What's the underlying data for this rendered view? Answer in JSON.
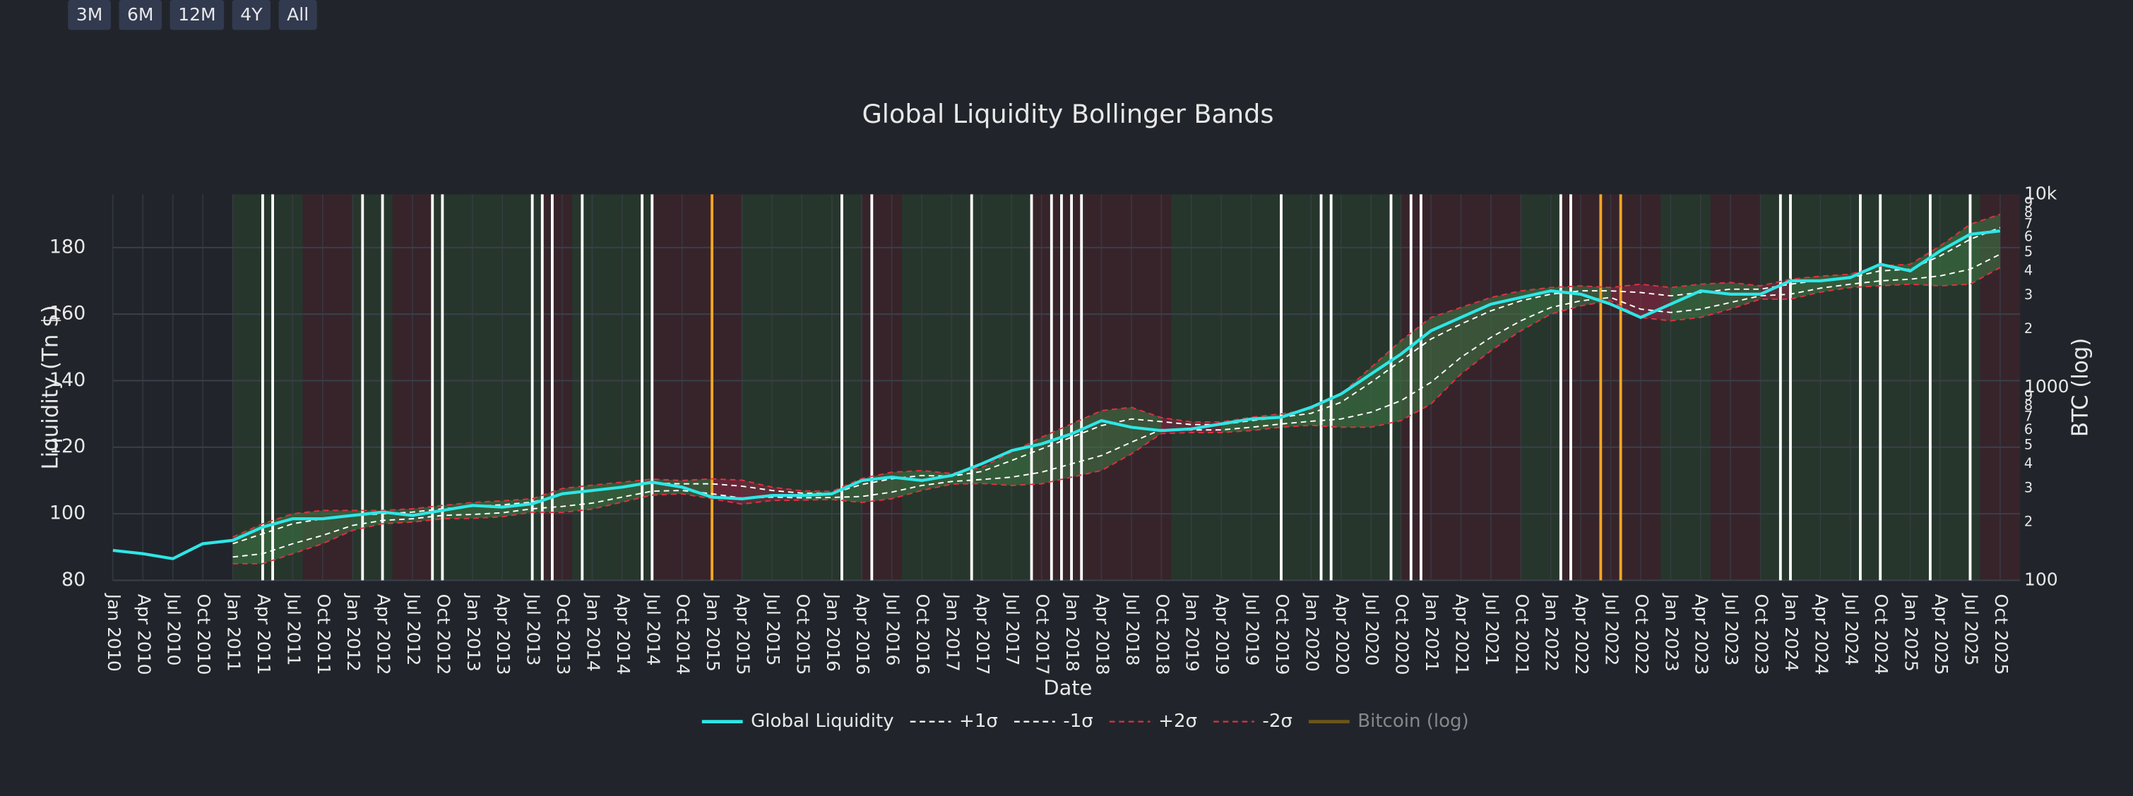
{
  "buttons": [
    "3M",
    "6M",
    "12M",
    "4Y",
    "All"
  ],
  "chart_data": {
    "type": "line",
    "title": "Global Liquidity Bollinger Bands",
    "xlabel": "Date",
    "ylabel": "Liquidity (Tn $)",
    "y2label": "BTC (log)",
    "x": [
      "2010-01",
      "2010-04",
      "2010-07",
      "2010-10",
      "2011-01",
      "2011-04",
      "2011-07",
      "2011-10",
      "2012-01",
      "2012-04",
      "2012-07",
      "2012-10",
      "2013-01",
      "2013-04",
      "2013-07",
      "2013-10",
      "2014-01",
      "2014-04",
      "2014-07",
      "2014-10",
      "2015-01",
      "2015-04",
      "2015-07",
      "2015-10",
      "2016-01",
      "2016-04",
      "2016-07",
      "2016-10",
      "2017-01",
      "2017-04",
      "2017-07",
      "2017-10",
      "2018-01",
      "2018-04",
      "2018-07",
      "2018-10",
      "2019-01",
      "2019-04",
      "2019-07",
      "2019-10",
      "2020-01",
      "2020-04",
      "2020-07",
      "2020-10",
      "2021-01",
      "2021-04",
      "2021-07",
      "2021-10",
      "2022-01",
      "2022-04",
      "2022-07",
      "2022-10",
      "2023-01",
      "2023-04",
      "2023-07",
      "2023-10",
      "2024-01",
      "2024-04",
      "2024-07",
      "2024-10",
      "2025-01",
      "2025-04",
      "2025-07",
      "2025-10"
    ],
    "xlim": [
      "2010-01",
      "2025-12"
    ],
    "xticks": [
      {
        "value": "2010-01",
        "label": "Jan 2010"
      },
      {
        "value": "2010-04",
        "label": "Apr 2010"
      },
      {
        "value": "2010-07",
        "label": "Jul 2010"
      },
      {
        "value": "2010-10",
        "label": "Oct 2010"
      },
      {
        "value": "2011-01",
        "label": "Jan 2011"
      },
      {
        "value": "2011-04",
        "label": "Apr 2011"
      },
      {
        "value": "2011-07",
        "label": "Jul 2011"
      },
      {
        "value": "2011-10",
        "label": "Oct 2011"
      },
      {
        "value": "2012-01",
        "label": "Jan 2012"
      },
      {
        "value": "2012-04",
        "label": "Apr 2012"
      },
      {
        "value": "2012-07",
        "label": "Jul 2012"
      },
      {
        "value": "2012-10",
        "label": "Oct 2012"
      },
      {
        "value": "2013-01",
        "label": "Jan 2013"
      },
      {
        "value": "2013-04",
        "label": "Apr 2013"
      },
      {
        "value": "2013-07",
        "label": "Jul 2013"
      },
      {
        "value": "2013-10",
        "label": "Oct 2013"
      },
      {
        "value": "2014-01",
        "label": "Jan 2014"
      },
      {
        "value": "2014-04",
        "label": "Apr 2014"
      },
      {
        "value": "2014-07",
        "label": "Jul 2014"
      },
      {
        "value": "2014-10",
        "label": "Oct 2014"
      },
      {
        "value": "2015-01",
        "label": "Jan 2015"
      },
      {
        "value": "2015-04",
        "label": "Apr 2015"
      },
      {
        "value": "2015-07",
        "label": "Jul 2015"
      },
      {
        "value": "2015-10",
        "label": "Oct 2015"
      },
      {
        "value": "2016-01",
        "label": "Jan 2016"
      },
      {
        "value": "2016-04",
        "label": "Apr 2016"
      },
      {
        "value": "2016-07",
        "label": "Jul 2016"
      },
      {
        "value": "2016-10",
        "label": "Oct 2016"
      },
      {
        "value": "2017-01",
        "label": "Jan 2017"
      },
      {
        "value": "2017-04",
        "label": "Apr 2017"
      },
      {
        "value": "2017-07",
        "label": "Jul 2017"
      },
      {
        "value": "2017-10",
        "label": "Oct 2017"
      },
      {
        "value": "2018-01",
        "label": "Jan 2018"
      },
      {
        "value": "2018-04",
        "label": "Apr 2018"
      },
      {
        "value": "2018-07",
        "label": "Jul 2018"
      },
      {
        "value": "2018-10",
        "label": "Oct 2018"
      },
      {
        "value": "2019-01",
        "label": "Jan 2019"
      },
      {
        "value": "2019-04",
        "label": "Apr 2019"
      },
      {
        "value": "2019-07",
        "label": "Jul 2019"
      },
      {
        "value": "2019-10",
        "label": "Oct 2019"
      },
      {
        "value": "2020-01",
        "label": "Jan 2020"
      },
      {
        "value": "2020-04",
        "label": "Apr 2020"
      },
      {
        "value": "2020-07",
        "label": "Jul 2020"
      },
      {
        "value": "2020-10",
        "label": "Oct 2020"
      },
      {
        "value": "2021-01",
        "label": "Jan 2021"
      },
      {
        "value": "2021-04",
        "label": "Apr 2021"
      },
      {
        "value": "2021-07",
        "label": "Jul 2021"
      },
      {
        "value": "2021-10",
        "label": "Oct 2021"
      },
      {
        "value": "2022-01",
        "label": "Jan 2022"
      },
      {
        "value": "2022-04",
        "label": "Apr 2022"
      },
      {
        "value": "2022-07",
        "label": "Jul 2022"
      },
      {
        "value": "2022-10",
        "label": "Oct 2022"
      },
      {
        "value": "2023-01",
        "label": "Jan 2023"
      },
      {
        "value": "2023-04",
        "label": "Apr 2023"
      },
      {
        "value": "2023-07",
        "label": "Jul 2023"
      },
      {
        "value": "2023-10",
        "label": "Oct 2023"
      },
      {
        "value": "2024-01",
        "label": "Jan 2024"
      },
      {
        "value": "2024-04",
        "label": "Apr 2024"
      },
      {
        "value": "2024-07",
        "label": "Jul 2024"
      },
      {
        "value": "2024-10",
        "label": "Oct 2024"
      },
      {
        "value": "2025-01",
        "label": "Jan 2025"
      },
      {
        "value": "2025-04",
        "label": "Apr 2025"
      },
      {
        "value": "2025-07",
        "label": "Jul 2025"
      },
      {
        "value": "2025-10",
        "label": "Oct 2025"
      }
    ],
    "ylim": [
      80,
      196
    ],
    "yticks": [
      80,
      100,
      120,
      140,
      160,
      180
    ],
    "y2lim": [
      100,
      10000
    ],
    "y2log": true,
    "y2ticks": [
      100,
      {
        "value": 200,
        "label": "2"
      },
      {
        "value": 300,
        "label": "3"
      },
      {
        "value": 400,
        "label": "4"
      },
      {
        "value": 500,
        "label": "5"
      },
      {
        "value": 600,
        "label": "6"
      },
      {
        "value": 700,
        "label": "7"
      },
      {
        "value": 800,
        "label": "8"
      },
      {
        "value": 900,
        "label": "9"
      },
      1000,
      {
        "value": 2000,
        "label": "2"
      },
      {
        "value": 3000,
        "label": "3"
      },
      {
        "value": 4000,
        "label": "4"
      },
      {
        "value": 5000,
        "label": "5"
      },
      {
        "value": 6000,
        "label": "6"
      },
      {
        "value": 7000,
        "label": "7"
      },
      {
        "value": 8000,
        "label": "8"
      },
      {
        "value": 9000,
        "label": "9"
      },
      {
        "value": 10000,
        "label": "10k"
      }
    ],
    "grid": true,
    "legend": "bottom",
    "band_colors": {
      "above": "#3f7a45",
      "below": "#8a2a45"
    },
    "regimes": [
      {
        "start": "2011-01",
        "end": "2011-08",
        "color": "#283a2d"
      },
      {
        "start": "2011-08",
        "end": "2012-01",
        "color": "#3b252c"
      },
      {
        "start": "2012-01",
        "end": "2012-05",
        "color": "#283a2d"
      },
      {
        "start": "2012-05",
        "end": "2012-09",
        "color": "#3b252c"
      },
      {
        "start": "2012-09",
        "end": "2013-08",
        "color": "#283a2d"
      },
      {
        "start": "2013-08",
        "end": "2013-11",
        "color": "#3b252c"
      },
      {
        "start": "2013-11",
        "end": "2014-07",
        "color": "#283a2d"
      },
      {
        "start": "2014-07",
        "end": "2015-04",
        "color": "#3b252c"
      },
      {
        "start": "2015-04",
        "end": "2016-04",
        "color": "#283a2d"
      },
      {
        "start": "2016-04",
        "end": "2016-08",
        "color": "#3b252c"
      },
      {
        "start": "2016-08",
        "end": "2017-09",
        "color": "#283a2d"
      },
      {
        "start": "2017-09",
        "end": "2018-11",
        "color": "#3b252c"
      },
      {
        "start": "2018-11",
        "end": "2020-10",
        "color": "#283a2d"
      },
      {
        "start": "2020-10",
        "end": "2021-10",
        "color": "#3b252c"
      },
      {
        "start": "2021-10",
        "end": "2022-02",
        "color": "#283a2d"
      },
      {
        "start": "2022-02",
        "end": "2022-12",
        "color": "#3b252c"
      },
      {
        "start": "2022-12",
        "end": "2023-05",
        "color": "#283a2d"
      },
      {
        "start": "2023-05",
        "end": "2023-10",
        "color": "#3b252c"
      },
      {
        "start": "2023-10",
        "end": "2025-08",
        "color": "#283a2d"
      },
      {
        "start": "2025-08",
        "end": "2025-12",
        "color": "#3b252c"
      }
    ],
    "signals": [
      {
        "color": "#ffffff",
        "x": [
          "2011-04",
          "2011-05",
          "2012-02",
          "2012-04",
          "2012-09",
          "2012-10",
          "2013-07",
          "2013-08",
          "2013-09",
          "2013-12",
          "2014-06",
          "2014-07",
          "2016-02",
          "2016-05",
          "2017-03",
          "2017-09",
          "2017-11",
          "2017-12",
          "2018-01",
          "2018-02",
          "2019-10",
          "2020-02",
          "2020-03",
          "2020-09",
          "2020-11",
          "2020-12",
          "2022-02",
          "2022-03",
          "2023-12",
          "2024-01",
          "2024-08",
          "2024-10",
          "2025-03",
          "2025-07"
        ]
      },
      {
        "color": "#f5a623",
        "x": [
          "2015-01",
          "2022-06",
          "2022-08"
        ]
      }
    ],
    "series": [
      {
        "name": "Global Liquidity",
        "color": "#2ee6e6",
        "dash": "solid",
        "width": 2.2,
        "values": [
          89,
          88,
          86.5,
          91,
          92,
          96,
          98.5,
          98.5,
          99.5,
          100.5,
          99.5,
          101,
          102.5,
          102,
          103,
          106,
          107,
          108,
          109.5,
          108,
          105,
          104.5,
          105.5,
          105.5,
          106,
          110,
          111,
          110,
          111.5,
          115,
          119,
          121,
          124,
          128,
          126,
          125,
          125.5,
          127,
          128.5,
          129,
          132,
          136,
          142,
          148,
          155,
          159,
          163,
          165,
          167,
          166,
          163,
          159,
          163,
          167,
          166,
          166,
          170,
          170,
          171,
          175,
          173,
          179,
          184,
          185
        ]
      },
      {
        "name": "+1σ",
        "color": "#ffffff",
        "dash": "dash",
        "width": 1,
        "values": [
          null,
          null,
          null,
          null,
          91,
          94,
          97,
          98.5,
          99.5,
          100,
          100.5,
          101.5,
          102.2,
          102.7,
          103.5,
          105.8,
          106.8,
          108,
          109.2,
          109,
          109,
          108.3,
          107,
          106.2,
          106.1,
          108.8,
          110.5,
          111.5,
          111.3,
          112.7,
          116,
          119.5,
          123,
          126.5,
          128.5,
          127.7,
          126.8,
          126.8,
          128,
          129,
          130.2,
          133.5,
          139.5,
          146,
          152.5,
          157,
          161,
          164,
          166,
          167,
          167,
          166.5,
          165.5,
          166.5,
          167.5,
          167.5,
          169,
          170.2,
          171,
          173,
          173.5,
          177.5,
          182.5,
          186
        ]
      },
      {
        "name": "-1σ",
        "color": "#ffffff",
        "dash": "dash",
        "width": 1,
        "values": [
          null,
          null,
          null,
          null,
          87,
          88,
          91,
          93.5,
          96.5,
          98,
          98.5,
          99.5,
          99.8,
          100.3,
          101.5,
          102.2,
          103.2,
          105,
          106.8,
          107,
          106,
          104.7,
          105,
          104.8,
          104.9,
          105.2,
          106.5,
          108.5,
          109.7,
          110.3,
          111,
          112.5,
          115,
          117.5,
          121.5,
          125.3,
          125.2,
          125.2,
          126,
          127,
          127.8,
          128.5,
          130.5,
          134,
          139.5,
          147,
          153,
          158,
          162,
          164,
          165,
          161.5,
          160.5,
          161.5,
          163.5,
          165.5,
          166,
          167.8,
          169,
          170,
          170.5,
          171.5,
          173.5,
          178
        ]
      },
      {
        "name": "+2σ",
        "color": "#e0313f",
        "dash": "dash",
        "width": 1,
        "values": [
          null,
          null,
          null,
          null,
          93,
          97,
          100,
          101,
          101,
          101,
          101.5,
          102.5,
          103.4,
          103.9,
          104.5,
          107.6,
          108.6,
          109.5,
          110.4,
          110,
          110.5,
          110.1,
          108,
          106.9,
          106.7,
          110.6,
          112.5,
          113,
          112.1,
          113.9,
          118.5,
          123,
          127,
          131,
          132,
          128.9,
          127.6,
          127.6,
          129,
          130,
          131.4,
          136,
          144,
          152,
          159,
          162,
          165,
          167,
          168,
          168.5,
          168,
          169,
          168,
          169,
          169.5,
          168.5,
          170.5,
          171.4,
          172,
          174.5,
          175,
          180.5,
          187,
          190
        ]
      },
      {
        "name": "-2σ",
        "color": "#e0313f",
        "dash": "dash",
        "width": 1,
        "values": [
          null,
          null,
          null,
          null,
          85,
          85,
          88,
          91,
          95,
          97,
          97.5,
          98.5,
          98.6,
          99.1,
          100.5,
          100.4,
          101.4,
          103.5,
          105.6,
          106,
          104.5,
          102.9,
          104,
          104.1,
          104.3,
          103.4,
          104.5,
          107,
          108.9,
          109.1,
          108.5,
          109,
          111,
          113,
          118,
          124.1,
          124.4,
          124.4,
          125,
          126,
          126.6,
          126,
          126,
          128,
          133,
          142,
          149,
          155,
          160,
          162.5,
          164,
          159,
          158,
          159,
          161.5,
          164.5,
          164.5,
          166.6,
          168,
          168.5,
          169,
          168.5,
          169,
          174
        ]
      },
      {
        "name": "Bitcoin (log)",
        "color": "#b8860b",
        "dash": "solid",
        "width": 1.5,
        "axis": "y2",
        "visible": false
      }
    ]
  }
}
